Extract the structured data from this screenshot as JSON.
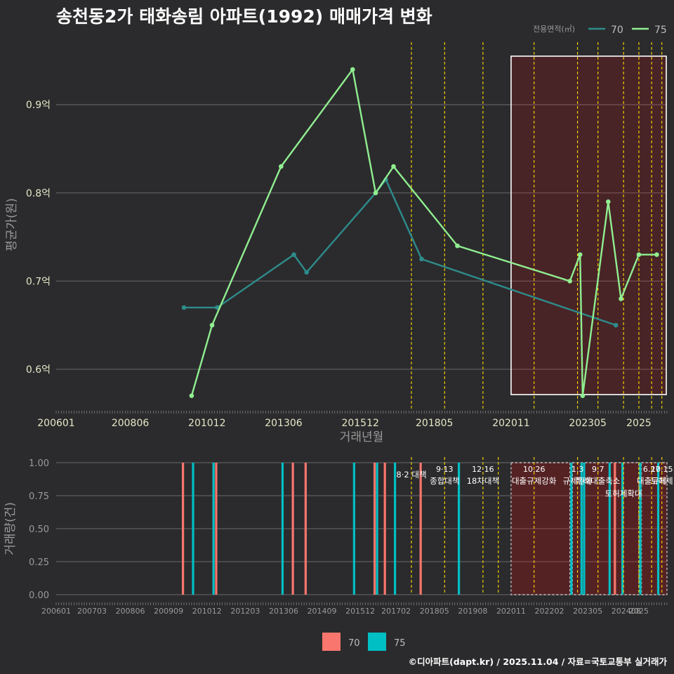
{
  "title": "송천동2가 태화송림 아파트(1992) 매매가격 변화",
  "credit": "©디아파트(dapt.kr) / 2025.11.04 / 자료=국토교통부 실거래가",
  "colors": {
    "s70_top": "#2e8b8b",
    "s75_top": "#90ee90",
    "s70_bottom": "#f8766d",
    "s75_bottom": "#00bfc4",
    "policy": "#ffd700",
    "highlight": "#ff0000"
  },
  "chart_data": [
    {
      "type": "line",
      "title": "송천동2가 태화송림 아파트(1992) 매매가격 변화",
      "xlabel": "거래년월",
      "ylabel": "평균가(원)",
      "xlim": [
        "2006-01",
        "2025-12"
      ],
      "ylim": [
        0.553,
        0.975
      ],
      "yticks": [
        0.6,
        0.7,
        0.8,
        0.9
      ],
      "ytick_labels": [
        "0.6억",
        "0.7억",
        "0.8억",
        "0.9억"
      ],
      "xticks": [
        "200601",
        "200806",
        "201012",
        "201306",
        "201512",
        "201805",
        "202011",
        "202305",
        "2025"
      ],
      "legend_title": "전용면적(㎡)",
      "legend": [
        "70",
        "75"
      ],
      "series": [
        {
          "name": "70",
          "points": [
            [
              "2010-03",
              0.67
            ],
            [
              "2011-04",
              0.67
            ],
            [
              "2013-10",
              0.73
            ],
            [
              "2014-03",
              0.71
            ],
            [
              "2016-06",
              0.8
            ],
            [
              "2016-10",
              0.815
            ],
            [
              "2017-12",
              0.725
            ],
            [
              "2024-04",
              0.65
            ]
          ]
        },
        {
          "name": "75",
          "points": [
            [
              "2010-06",
              0.57
            ],
            [
              "2011-02",
              0.65
            ],
            [
              "2013-05",
              0.83
            ],
            [
              "2015-09",
              0.94
            ],
            [
              "2016-06",
              0.8
            ],
            [
              "2017-01",
              0.83
            ],
            [
              "2019-02",
              0.74
            ],
            [
              "2022-10",
              0.7
            ],
            [
              "2023-02",
              0.73
            ],
            [
              "2023-03",
              0.57
            ],
            [
              "2024-01",
              0.79
            ],
            [
              "2024-06",
              0.68
            ],
            [
              "2025-01",
              0.73
            ],
            [
              "2025-08",
              0.73
            ]
          ]
        }
      ],
      "policy_lines": [
        "2017-08",
        "2018-09",
        "2019-12",
        "2021-08",
        "2023-01",
        "2023-09",
        "2024-07",
        "2025-01",
        "2025-06",
        "2025-10"
      ],
      "highlight_range": [
        "2020-11",
        "2025-12"
      ]
    },
    {
      "type": "bar",
      "ylabel": "거래량(건)",
      "ylim": [
        0,
        1
      ],
      "yticks": [
        0,
        0.25,
        0.5,
        0.75,
        1.0
      ],
      "ytick_labels": [
        "0.00",
        "0.25",
        "0.50",
        "0.75",
        "1.00"
      ],
      "xticks": [
        "200601",
        "200703",
        "200806",
        "200909",
        "201012",
        "201203",
        "201306",
        "201409",
        "201512",
        "201702",
        "201805",
        "201908",
        "202011",
        "202202",
        "202305",
        "202408",
        "2025"
      ],
      "legend": [
        "70",
        "75"
      ],
      "bars": [
        {
          "series": "70",
          "month": "2010-03",
          "value": 1
        },
        {
          "series": "75",
          "month": "2010-06",
          "value": 1
        },
        {
          "series": "75",
          "month": "2011-02",
          "value": 1
        },
        {
          "series": "70",
          "month": "2011-04",
          "value": 1
        },
        {
          "series": "75",
          "month": "2013-05",
          "value": 1
        },
        {
          "series": "70",
          "month": "2013-10",
          "value": 1
        },
        {
          "series": "70",
          "month": "2014-03",
          "value": 1
        },
        {
          "series": "75",
          "month": "2015-09",
          "value": 1
        },
        {
          "series": "75",
          "month": "2016-06",
          "value": 1
        },
        {
          "series": "70",
          "month": "2016-06",
          "value": 1
        },
        {
          "series": "70",
          "month": "2016-10",
          "value": 1
        },
        {
          "series": "75",
          "month": "2017-01",
          "value": 1
        },
        {
          "series": "70",
          "month": "2017-12",
          "value": 1
        },
        {
          "series": "75",
          "month": "2019-02",
          "value": 1
        },
        {
          "series": "75",
          "month": "2022-10",
          "value": 1
        },
        {
          "series": "75",
          "month": "2023-02",
          "value": 1
        },
        {
          "series": "75",
          "month": "2023-03",
          "value": 1
        },
        {
          "series": "75",
          "month": "2024-01",
          "value": 1
        },
        {
          "series": "70",
          "month": "2024-04",
          "value": 1
        },
        {
          "series": "75",
          "month": "2024-06",
          "value": 1
        },
        {
          "series": "75",
          "month": "2025-01",
          "value": 1
        },
        {
          "series": "75",
          "month": "2025-08",
          "value": 1
        }
      ],
      "policy_lines": [
        "2017-08",
        "2018-09",
        "2019-12",
        "2020-06",
        "2021-08",
        "2023-01",
        "2023-09",
        "2024-07",
        "2025-01",
        "2025-06",
        "2025-10"
      ],
      "annotations": [
        {
          "month": "2017-08",
          "date": "",
          "label": "8·2 대책"
        },
        {
          "month": "2018-09",
          "date": "9·13",
          "label": "종합대책"
        },
        {
          "month": "2019-12",
          "date": "12·16",
          "label": "18차대책"
        },
        {
          "month": "2021-08",
          "date": "10.26",
          "label": "대출규제강화"
        },
        {
          "month": "2023-01",
          "date": "1.3",
          "label": "규제완화"
        },
        {
          "month": "2023-09",
          "date": "9.7",
          "label": "특례대출축소"
        },
        {
          "month": "2024-07",
          "date": "",
          "label": "토허제확대"
        },
        {
          "month": "2025-06",
          "date": "6.27",
          "label": "대출규제"
        },
        {
          "month": "2025-10",
          "date": "10.15",
          "label": "토허제"
        }
      ],
      "shaded_ranges": [
        [
          "2020-11",
          "2022-10"
        ],
        [
          "2022-11",
          "2025-01"
        ],
        [
          "2025-02",
          "2025-12"
        ]
      ]
    }
  ]
}
